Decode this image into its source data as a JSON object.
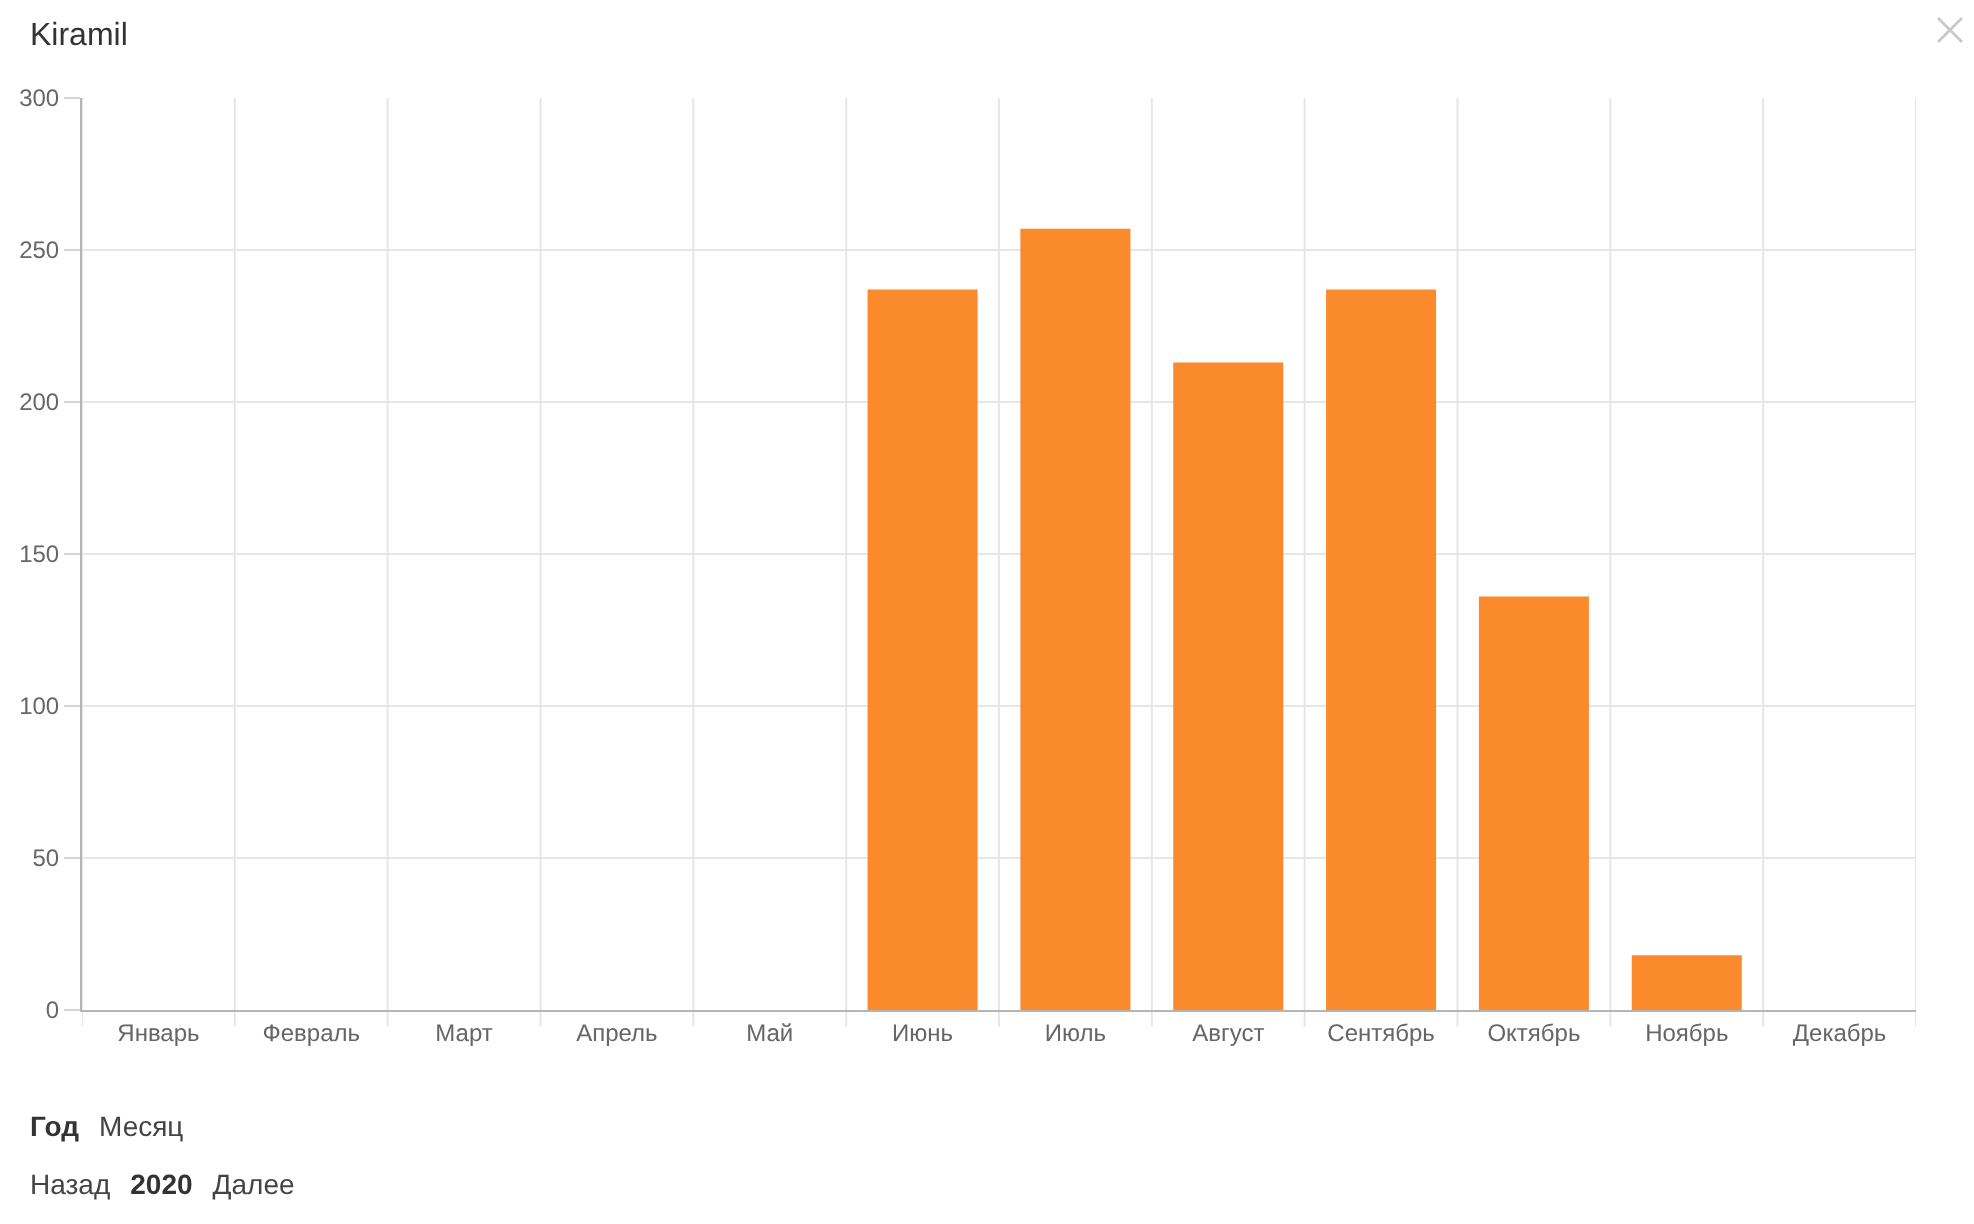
{
  "chart_data": {
    "type": "bar",
    "title": "Kiramil",
    "categories": [
      "Январь",
      "Февраль",
      "Март",
      "Апрель",
      "Май",
      "Июнь",
      "Июль",
      "Август",
      "Сентябрь",
      "Октябрь",
      "Ноябрь",
      "Декабрь"
    ],
    "values": [
      0,
      0,
      0,
      0,
      0,
      237,
      257,
      213,
      237,
      136,
      18,
      0
    ],
    "color": "#fa8a2b",
    "ylim": [
      0,
      300
    ],
    "yticks": [
      0,
      50,
      100,
      150,
      200,
      250,
      300
    ],
    "grid": true,
    "annotations": [
      "Год",
      "Месяц",
      "Назад",
      "2020",
      "Далее"
    ]
  }
}
